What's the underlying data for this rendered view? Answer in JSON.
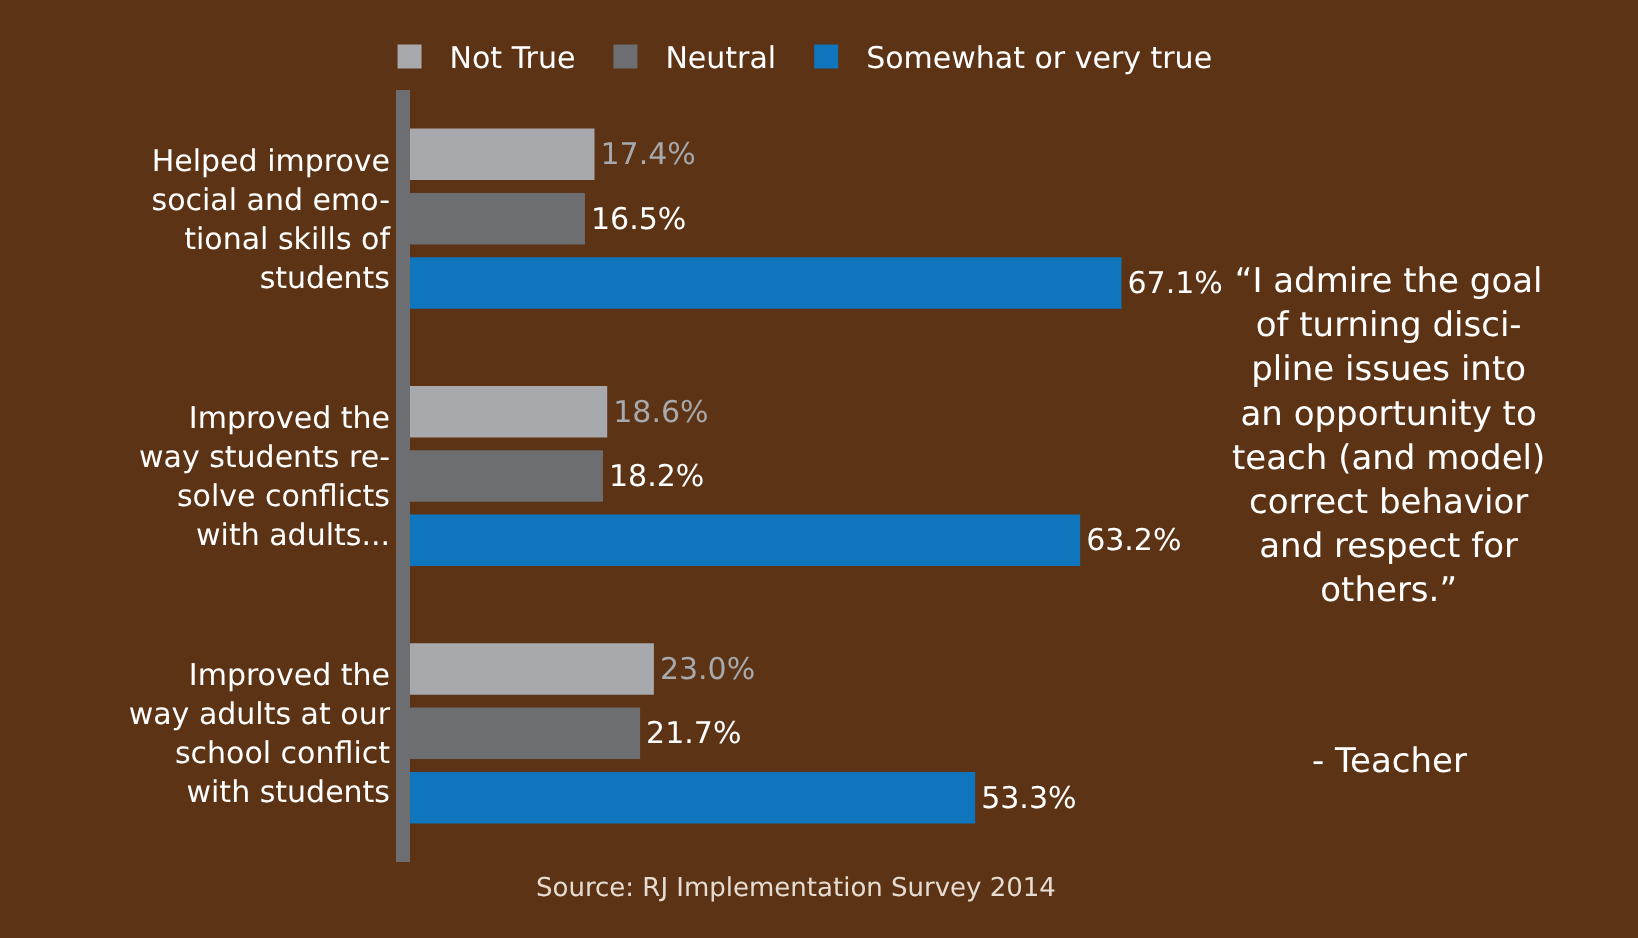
{
  "chart_data": {
    "type": "bar",
    "orientation": "horizontal",
    "categories": [
      "Helped improve\nsocial and emo-\ntional skills of\nstudents",
      "Improved the\nway students re-\nsolve conflicts\nwith adults...",
      "Improved the\nway adults at our\nschool conflict\nwith students"
    ],
    "series": [
      {
        "name": "Not True",
        "color": "#a7a9ac",
        "values": [
          17.4,
          18.6,
          23.0
        ],
        "value_labels": [
          "17.4%",
          "18.6%",
          "23.0%"
        ]
      },
      {
        "name": "Neutral",
        "color": "#6d6e71",
        "values": [
          16.5,
          18.2,
          21.7
        ],
        "value_labels": [
          "16.5%",
          "18.2%",
          "21.7%"
        ]
      },
      {
        "name": "Somewhat or very true",
        "color": "#0f75bc",
        "values": [
          67.1,
          63.2,
          53.3
        ],
        "value_labels": [
          "67.1%",
          "63.2%",
          "53.3%"
        ]
      }
    ],
    "legend": "top",
    "grid": false,
    "annotations": [
      "“I admire the goal\nof turning disci-\npline issues into\nan opportunity to\nteach (and model)\ncorrect behavior\nand respect for\nothers.”",
      "- Teacher",
      "Source: RJ Implementation Survey 2014"
    ]
  }
}
